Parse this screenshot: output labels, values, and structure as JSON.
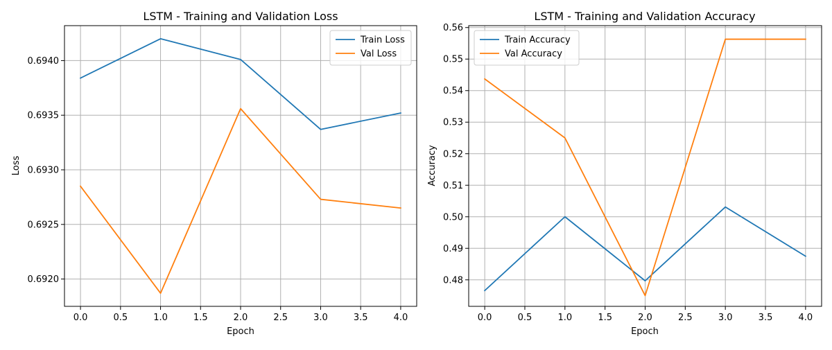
{
  "chart_data": [
    {
      "type": "line",
      "title": "LSTM - Training and Validation Loss",
      "xlabel": "Epoch",
      "ylabel": "Loss",
      "x": [
        0,
        1,
        2,
        3,
        4
      ],
      "xlim": [
        -0.2,
        4.2
      ],
      "ylim": [
        0.69175,
        0.69432
      ],
      "xticks": [
        0.0,
        0.5,
        1.0,
        1.5,
        2.0,
        2.5,
        3.0,
        3.5,
        4.0
      ],
      "yticks": [
        0.692,
        0.6925,
        0.693,
        0.6935,
        0.694
      ],
      "xtick_labels": [
        "0.0",
        "0.5",
        "1.0",
        "1.5",
        "2.0",
        "2.5",
        "3.0",
        "3.5",
        "4.0"
      ],
      "ytick_labels": [
        "0.6920",
        "0.6925",
        "0.6930",
        "0.6935",
        "0.6940"
      ],
      "grid": true,
      "legend_position": "top-right",
      "series": [
        {
          "name": "Train Loss",
          "color": "#1f77b4",
          "values": [
            0.69384,
            0.6942,
            0.69401,
            0.69337,
            0.69352
          ]
        },
        {
          "name": "Val Loss",
          "color": "#ff7f0e",
          "values": [
            0.69285,
            0.69187,
            0.69356,
            0.69273,
            0.69265
          ]
        }
      ]
    },
    {
      "type": "line",
      "title": "LSTM - Training and Validation Accuracy",
      "xlabel": "Epoch",
      "ylabel": "Accuracy",
      "x": [
        0,
        1,
        2,
        3,
        4
      ],
      "xlim": [
        -0.2,
        4.2
      ],
      "ylim": [
        0.4716,
        0.5606
      ],
      "xticks": [
        0.0,
        0.5,
        1.0,
        1.5,
        2.0,
        2.5,
        3.0,
        3.5,
        4.0
      ],
      "yticks": [
        0.48,
        0.49,
        0.5,
        0.51,
        0.52,
        0.53,
        0.54,
        0.55,
        0.56
      ],
      "xtick_labels": [
        "0.0",
        "0.5",
        "1.0",
        "1.5",
        "2.0",
        "2.5",
        "3.0",
        "3.5",
        "4.0"
      ],
      "ytick_labels": [
        "0.48",
        "0.49",
        "0.50",
        "0.51",
        "0.52",
        "0.53",
        "0.54",
        "0.55",
        "0.56"
      ],
      "grid": true,
      "legend_position": "top-left",
      "series": [
        {
          "name": "Train Accuracy",
          "color": "#1f77b4",
          "values": [
            0.4766,
            0.5,
            0.4797,
            0.5031,
            0.4875
          ]
        },
        {
          "name": "Val Accuracy",
          "color": "#ff7f0e",
          "values": [
            0.5437,
            0.525,
            0.475,
            0.5563,
            0.5563
          ]
        }
      ]
    }
  ]
}
